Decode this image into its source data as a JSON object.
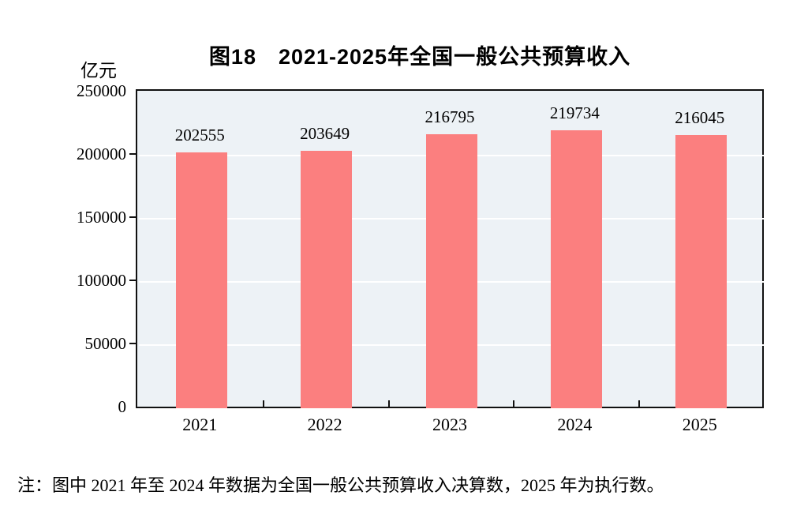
{
  "chart_data": {
    "type": "bar",
    "title": "图18　2021-2025年全国一般公共预算收入",
    "unit_label": "亿元",
    "categories": [
      "2021",
      "2022",
      "2023",
      "2024",
      "2025"
    ],
    "values": [
      202555,
      203649,
      216795,
      219734,
      216045
    ],
    "value_labels": [
      "202555",
      "203649",
      "216795",
      "219734",
      "216045"
    ],
    "ylim": [
      0,
      250000
    ],
    "yticks": [
      0,
      50000,
      100000,
      150000,
      200000,
      250000
    ],
    "ytick_labels": [
      "0",
      "50000",
      "100000",
      "150000",
      "200000",
      "250000"
    ],
    "grid": "horizontal",
    "legend": "none",
    "colors": {
      "bar_fill": "#fb7f7f",
      "plot_background": "#edf2f6",
      "gridline": "#ffffff",
      "frame": "#111111",
      "text": "#000000"
    }
  },
  "footnote": {
    "text": "注：图中 2021 年至 2024 年数据为全国一般公共预算收入决算数，2025 年为执行数。"
  }
}
